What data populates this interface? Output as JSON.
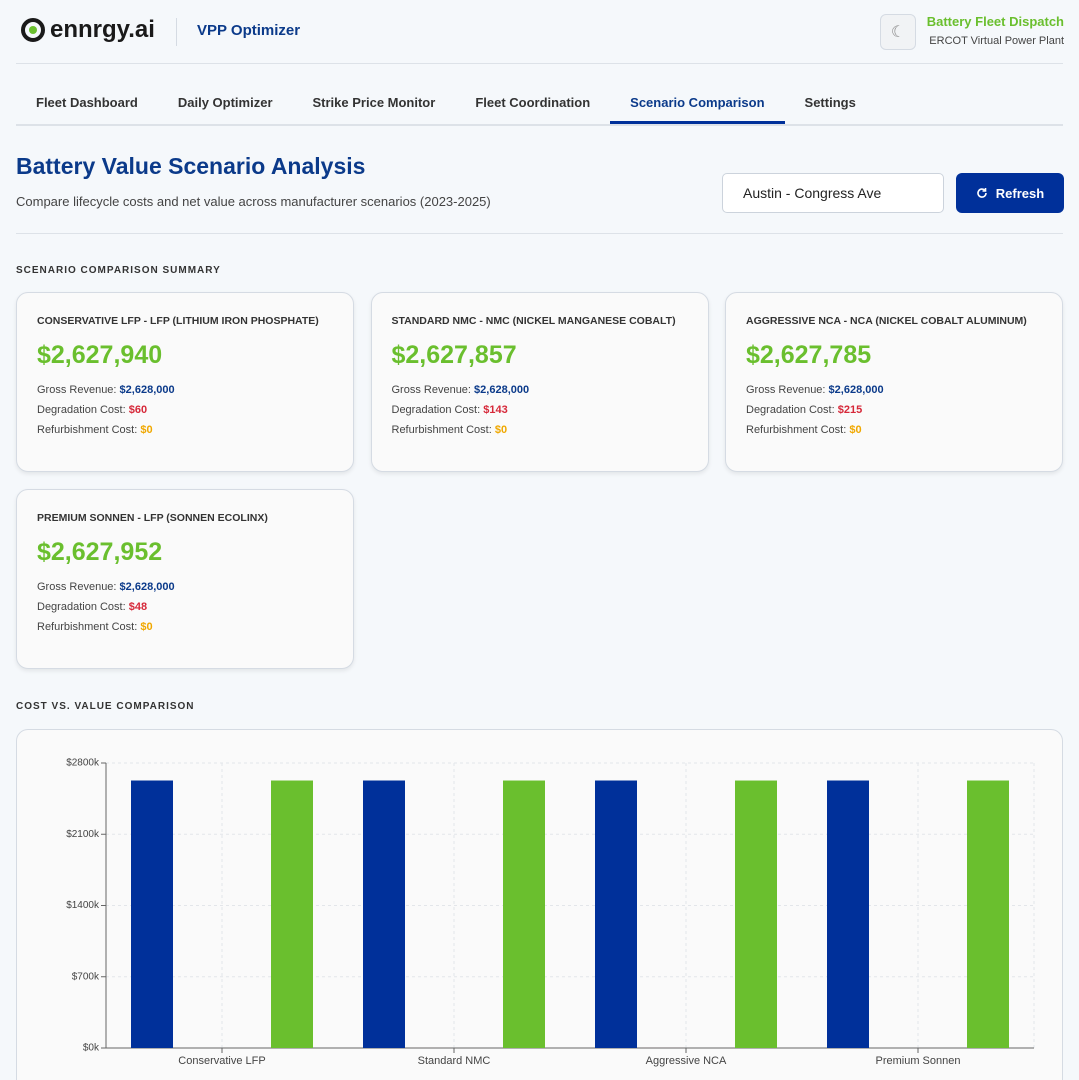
{
  "header": {
    "logo_text": "ennrgy.ai",
    "app_name": "VPP Optimizer",
    "theme_icon": "☾",
    "right_title": "Battery Fleet Dispatch",
    "right_subtitle": "ERCOT Virtual Power Plant"
  },
  "tabs": [
    {
      "label": "Fleet Dashboard",
      "active": false
    },
    {
      "label": "Daily Optimizer",
      "active": false
    },
    {
      "label": "Strike Price Monitor",
      "active": false
    },
    {
      "label": "Fleet Coordination",
      "active": false
    },
    {
      "label": "Scenario Comparison",
      "active": true
    },
    {
      "label": "Settings",
      "active": false
    }
  ],
  "page": {
    "title": "Battery Value Scenario Analysis",
    "subtitle": "Compare lifecycle costs and net value across manufacturer scenarios (2023-2025)",
    "site_select": "Austin - Congress Ave",
    "refresh_button": "Refresh"
  },
  "summary": {
    "heading": "SCENARIO COMPARISON SUMMARY",
    "cards": [
      {
        "title": "CONSERVATIVE LFP - LFP (LITHIUM IRON PHOSPHATE)",
        "net_value": "$2,627,940",
        "rows": [
          {
            "label": "Gross Revenue:",
            "value": "$2,628,000"
          },
          {
            "label": "Degradation Cost:",
            "value": "$60"
          },
          {
            "label": "Refurbishment Cost:",
            "value": "$0"
          }
        ]
      },
      {
        "title": "STANDARD NMC - NMC (NICKEL MANGANESE COBALT)",
        "net_value": "$2,627,857",
        "rows": [
          {
            "label": "Gross Revenue:",
            "value": "$2,628,000"
          },
          {
            "label": "Degradation Cost:",
            "value": "$143"
          },
          {
            "label": "Refurbishment Cost:",
            "value": "$0"
          }
        ]
      },
      {
        "title": "AGGRESSIVE NCA - NCA (NICKEL COBALT ALUMINUM)",
        "net_value": "$2,627,785",
        "rows": [
          {
            "label": "Gross Revenue:",
            "value": "$2,628,000"
          },
          {
            "label": "Degradation Cost:",
            "value": "$215"
          },
          {
            "label": "Refurbishment Cost:",
            "value": "$0"
          }
        ]
      },
      {
        "title": "PREMIUM SONNEN - LFP (SONNEN ECOLINX)",
        "net_value": "$2,627,952",
        "rows": [
          {
            "label": "Gross Revenue:",
            "value": "$2,628,000"
          },
          {
            "label": "Degradation Cost:",
            "value": "$48"
          },
          {
            "label": "Refurbishment Cost:",
            "value": "$0"
          }
        ]
      }
    ]
  },
  "chart_section": {
    "heading": "COST VS. VALUE COMPARISON"
  },
  "chart_data": {
    "type": "bar",
    "categories": [
      "Conservative LFP",
      "Standard NMC",
      "Aggressive NCA",
      "Premium Sonnen"
    ],
    "series": [
      {
        "color": "#00309a",
        "values": [
          2628000,
          2628000,
          2628000,
          2628000
        ]
      },
      {
        "color": "#d62839",
        "values": [
          60,
          143,
          215,
          48
        ]
      },
      {
        "color": "#f0a800",
        "values": [
          0,
          0,
          0,
          0
        ]
      },
      {
        "color": "#6abf2e",
        "values": [
          2627940,
          2627857,
          2627785,
          2627952
        ]
      }
    ],
    "ylim": [
      0,
      2800000
    ],
    "yticks": [
      {
        "value": 0,
        "label": "$0k"
      },
      {
        "value": 700000,
        "label": "$700k"
      },
      {
        "value": 1400000,
        "label": "$1400k"
      },
      {
        "value": 2100000,
        "label": "$2100k"
      },
      {
        "value": 2800000,
        "label": "$2800k"
      }
    ],
    "grid": true
  }
}
